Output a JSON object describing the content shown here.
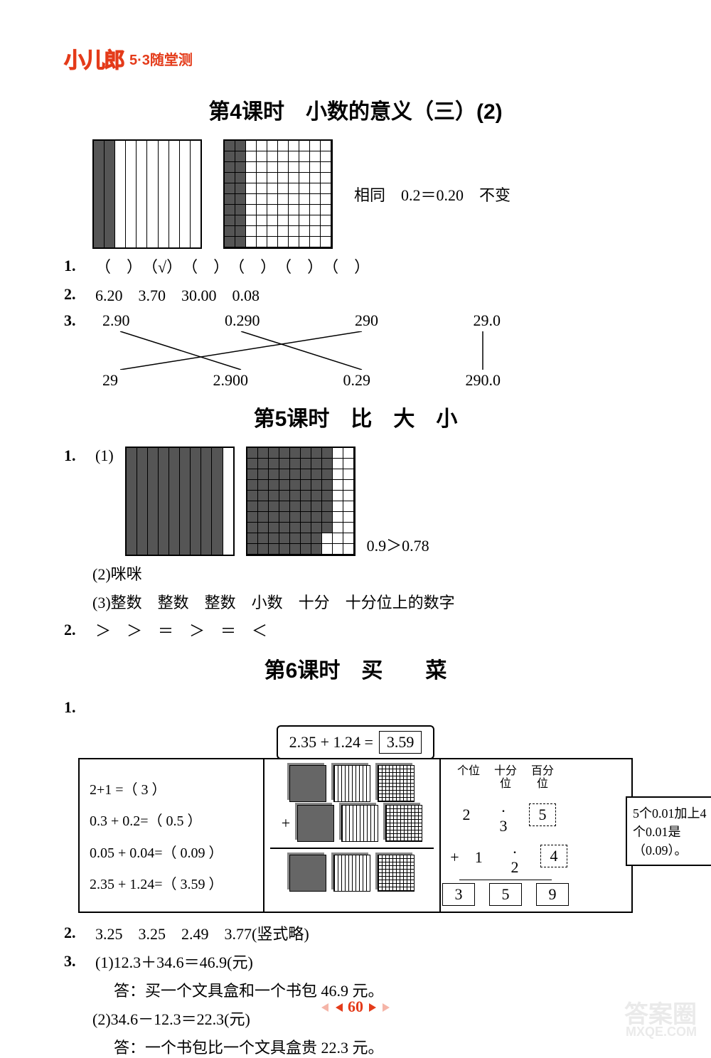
{
  "header": {
    "logo": "小儿郎",
    "subtitle": "5·3随堂测"
  },
  "lesson4": {
    "title": "第4课时　小数的意义（三）(2)",
    "annot": "相同　0.2＝0.20　不变",
    "q1": "（　）　（√）　（　）　（　）　（　）　（　）",
    "q2": "6.20　3.70　30.00　0.08",
    "match_top": [
      "2.90",
      "0.290",
      "290",
      "29.0"
    ],
    "match_bot": [
      "29",
      "2.900",
      "0.29",
      "290.0"
    ]
  },
  "lesson5": {
    "title": "第5课时　比　大　小",
    "q1_annot": "0.9＞0.78",
    "q1_sub1": "(1)",
    "q1_sub2": "(2)咪咪",
    "q1_sub3": "(3)整数　整数　整数　小数　十分　十分位上的数字",
    "q2": "＞　＞　＝　＞　＝　＜"
  },
  "lesson6": {
    "title": "第6课时　买　　菜",
    "eq_label": "2.35 + 1.24 =",
    "eq_result": "3.59",
    "left_lines": [
      "2+1 =（ 3 ）",
      "0.3 + 0.2=（ 0.5 ）",
      "0.05 + 0.04=（ 0.09 ）",
      "2.35 + 1.24=（ 3.59 ）"
    ],
    "places": [
      "个位",
      "十分位",
      "百分位"
    ],
    "calc_r1": [
      "2",
      ".　3",
      "5"
    ],
    "calc_r2": [
      "+　1",
      ".　2",
      "4"
    ],
    "calc_r3": [
      "3",
      "5",
      "9"
    ],
    "callout": "5个0.01加上4个0.01是（0.09）。",
    "q2": "3.25　3.25　2.49　3.77(竖式略)",
    "q3_1a": "(1)12.3＋34.6＝46.9(元)",
    "q3_1b": "答：买一个文具盒和一个书包 46.9 元。",
    "q3_2a": "(2)34.6－12.3＝22.3(元)",
    "q3_2b": "答：一个书包比一个文具盒贵 22.3 元。"
  },
  "footer": {
    "page": "60"
  },
  "watermark": {
    "big": "答案圈",
    "small": "MXQE.COM"
  }
}
